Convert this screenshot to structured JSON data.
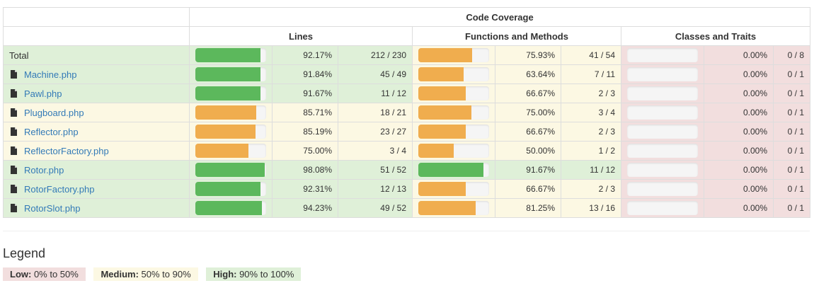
{
  "header": {
    "group": "Code Coverage",
    "lines": "Lines",
    "functions": "Functions and Methods",
    "classes": "Classes and Traits"
  },
  "rows": [
    {
      "name": "Total",
      "is_file": false,
      "lines_pct": "92.17%",
      "lines_frac": 0.9217,
      "lines_count": "212 / 230",
      "lines_level": "success",
      "func_pct": "75.93%",
      "func_frac": 0.7593,
      "func_count": "41 / 54",
      "func_level": "warning",
      "cls_pct": "0.00%",
      "cls_frac": 0,
      "cls_count": "0 / 8",
      "cls_level": "danger",
      "row_level": "success"
    },
    {
      "name": "Machine.php",
      "is_file": true,
      "lines_pct": "91.84%",
      "lines_frac": 0.9184,
      "lines_count": "45 / 49",
      "lines_level": "success",
      "func_pct": "63.64%",
      "func_frac": 0.6364,
      "func_count": "7 / 11",
      "func_level": "warning",
      "cls_pct": "0.00%",
      "cls_frac": 0,
      "cls_count": "0 / 1",
      "cls_level": "danger",
      "row_level": "success"
    },
    {
      "name": "Pawl.php",
      "is_file": true,
      "lines_pct": "91.67%",
      "lines_frac": 0.9167,
      "lines_count": "11 / 12",
      "lines_level": "success",
      "func_pct": "66.67%",
      "func_frac": 0.6667,
      "func_count": "2 / 3",
      "func_level": "warning",
      "cls_pct": "0.00%",
      "cls_frac": 0,
      "cls_count": "0 / 1",
      "cls_level": "danger",
      "row_level": "success"
    },
    {
      "name": "Plugboard.php",
      "is_file": true,
      "lines_pct": "85.71%",
      "lines_frac": 0.8571,
      "lines_count": "18 / 21",
      "lines_level": "warning",
      "func_pct": "75.00%",
      "func_frac": 0.75,
      "func_count": "3 / 4",
      "func_level": "warning",
      "cls_pct": "0.00%",
      "cls_frac": 0,
      "cls_count": "0 / 1",
      "cls_level": "danger",
      "row_level": "warning"
    },
    {
      "name": "Reflector.php",
      "is_file": true,
      "lines_pct": "85.19%",
      "lines_frac": 0.8519,
      "lines_count": "23 / 27",
      "lines_level": "warning",
      "func_pct": "66.67%",
      "func_frac": 0.6667,
      "func_count": "2 / 3",
      "func_level": "warning",
      "cls_pct": "0.00%",
      "cls_frac": 0,
      "cls_count": "0 / 1",
      "cls_level": "danger",
      "row_level": "warning"
    },
    {
      "name": "ReflectorFactory.php",
      "is_file": true,
      "lines_pct": "75.00%",
      "lines_frac": 0.75,
      "lines_count": "3 / 4",
      "lines_level": "warning",
      "func_pct": "50.00%",
      "func_frac": 0.5,
      "func_count": "1 / 2",
      "func_level": "warning",
      "cls_pct": "0.00%",
      "cls_frac": 0,
      "cls_count": "0 / 1",
      "cls_level": "danger",
      "row_level": "warning"
    },
    {
      "name": "Rotor.php",
      "is_file": true,
      "lines_pct": "98.08%",
      "lines_frac": 0.9808,
      "lines_count": "51 / 52",
      "lines_level": "success",
      "func_pct": "91.67%",
      "func_frac": 0.9167,
      "func_count": "11 / 12",
      "func_level": "success",
      "cls_pct": "0.00%",
      "cls_frac": 0,
      "cls_count": "0 / 1",
      "cls_level": "danger",
      "row_level": "success"
    },
    {
      "name": "RotorFactory.php",
      "is_file": true,
      "lines_pct": "92.31%",
      "lines_frac": 0.9231,
      "lines_count": "12 / 13",
      "lines_level": "success",
      "func_pct": "66.67%",
      "func_frac": 0.6667,
      "func_count": "2 / 3",
      "func_level": "warning",
      "cls_pct": "0.00%",
      "cls_frac": 0,
      "cls_count": "0 / 1",
      "cls_level": "danger",
      "row_level": "success"
    },
    {
      "name": "RotorSlot.php",
      "is_file": true,
      "lines_pct": "94.23%",
      "lines_frac": 0.9423,
      "lines_count": "49 / 52",
      "lines_level": "success",
      "func_pct": "81.25%",
      "func_frac": 0.8125,
      "func_count": "13 / 16",
      "func_level": "warning",
      "cls_pct": "0.00%",
      "cls_frac": 0,
      "cls_count": "0 / 1",
      "cls_level": "danger",
      "row_level": "success"
    }
  ],
  "legend": {
    "title": "Legend",
    "low_label": "Low:",
    "low_range": " 0% to 50%",
    "medium_label": "Medium:",
    "medium_range": " 50% to 90%",
    "high_label": "High:",
    "high_range": " 90% to 100%"
  },
  "colors": {
    "success_bg": "#dff0d8",
    "warning_bg": "#fcf8e3",
    "danger_bg": "#f2dede",
    "success_bar": "#5cb85c",
    "warning_bar": "#f0ad4e",
    "link": "#337ab7"
  }
}
